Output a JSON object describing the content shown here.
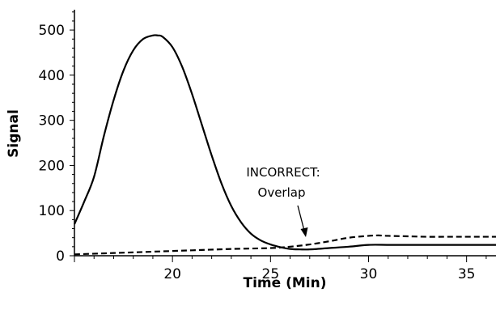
{
  "chart_data": {
    "type": "line",
    "title": "",
    "xlabel": "Time (Min)",
    "ylabel": "Signal",
    "xlim": [
      15,
      36.5
    ],
    "ylim": [
      0,
      545
    ],
    "x_ticks": [
      20,
      25,
      30,
      35
    ],
    "y_ticks": [
      0,
      100,
      200,
      300,
      400,
      500
    ],
    "grid": false,
    "series": [
      {
        "style": "solid",
        "color": "#000000",
        "x": [
          15,
          15.5,
          16,
          16.5,
          17,
          17.5,
          18,
          18.5,
          19,
          19.25,
          19.5,
          20,
          20.5,
          21,
          21.5,
          22,
          22.5,
          23,
          23.5,
          24,
          24.5,
          25,
          25.5,
          26,
          26.5,
          27,
          28,
          29,
          30,
          31,
          32,
          33,
          34,
          35,
          36.5
        ],
        "y": [
          70,
          120,
          175,
          265,
          345,
          410,
          455,
          480,
          488,
          488,
          485,
          462,
          418,
          358,
          290,
          222,
          160,
          110,
          74,
          49,
          34,
          25,
          19,
          15,
          14,
          14,
          17,
          20,
          24,
          24,
          24,
          24,
          24,
          24,
          24
        ]
      },
      {
        "style": "dashed",
        "color": "#000000",
        "x": [
          15,
          17,
          19,
          21,
          23,
          25,
          26,
          27,
          28,
          29,
          30,
          30.5,
          31,
          32,
          33,
          34,
          35,
          36.5
        ],
        "y": [
          3,
          6,
          9,
          12,
          15,
          17,
          20,
          25,
          32,
          40,
          44,
          45,
          44,
          43,
          42,
          42,
          42,
          42
        ]
      }
    ],
    "annotations": [
      {
        "lines": [
          "INCORRECT:",
          "Overlap"
        ],
        "points_to": {
          "x": 26.7,
          "y": 24
        }
      }
    ]
  }
}
